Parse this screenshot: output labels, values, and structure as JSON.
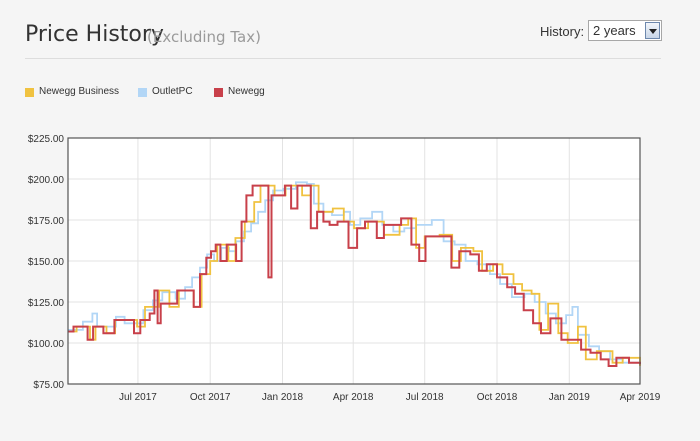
{
  "header": {
    "title": "Price History",
    "subtitle": "(Excluding Tax)",
    "history_label": "History:",
    "history_value": "2 years"
  },
  "legend": [
    {
      "name": "Newegg Business",
      "color": "#f0c240"
    },
    {
      "name": "OutletPC",
      "color": "#b2d6f6"
    },
    {
      "name": "Newegg",
      "color": "#c8404a"
    }
  ],
  "chart_data": {
    "type": "line",
    "title": "",
    "xlabel": "",
    "ylabel": "",
    "ylim": [
      75,
      225
    ],
    "yticks": [
      "$225.00",
      "$200.00",
      "$175.00",
      "$150.00",
      "$125.00",
      "$100.00",
      "$75.00"
    ],
    "xticks": [
      "Jul 2017",
      "Oct 2017",
      "Jan 2018",
      "Apr 2018",
      "Jul 2018",
      "Oct 2018",
      "Jan 2019",
      "Apr 2019"
    ],
    "xlim": [
      "2017-04-03",
      "2019-04-01"
    ],
    "grid": true,
    "legend_position": "top-left",
    "step": true,
    "series": [
      {
        "name": "OutletPC",
        "color": "#b2d6f6",
        "points": [
          [
            "2017-04-03",
            108
          ],
          [
            "2017-04-22",
            113
          ],
          [
            "2017-05-04",
            118
          ],
          [
            "2017-05-10",
            110
          ],
          [
            "2017-05-25",
            110
          ],
          [
            "2017-06-03",
            116
          ],
          [
            "2017-06-14",
            112
          ],
          [
            "2017-06-28",
            112
          ],
          [
            "2017-07-08",
            120
          ],
          [
            "2017-07-20",
            126
          ],
          [
            "2017-08-01",
            131
          ],
          [
            "2017-08-18",
            127
          ],
          [
            "2017-08-30",
            134
          ],
          [
            "2017-09-08",
            140
          ],
          [
            "2017-09-18",
            146
          ],
          [
            "2017-09-27",
            154
          ],
          [
            "2017-10-06",
            150
          ],
          [
            "2017-10-15",
            158
          ],
          [
            "2017-10-25",
            156
          ],
          [
            "2017-11-03",
            162
          ],
          [
            "2017-11-13",
            168
          ],
          [
            "2017-11-22",
            173
          ],
          [
            "2017-12-01",
            180
          ],
          [
            "2017-12-10",
            187
          ],
          [
            "2017-12-20",
            193
          ],
          [
            "2018-01-02",
            194
          ],
          [
            "2018-01-18",
            198
          ],
          [
            "2018-02-01",
            197
          ],
          [
            "2018-02-10",
            185
          ],
          [
            "2018-02-22",
            180
          ],
          [
            "2018-03-05",
            178
          ],
          [
            "2018-03-20",
            180
          ],
          [
            "2018-03-28",
            172
          ],
          [
            "2018-04-10",
            176
          ],
          [
            "2018-04-25",
            180
          ],
          [
            "2018-05-08",
            172
          ],
          [
            "2018-05-22",
            168
          ],
          [
            "2018-06-05",
            170
          ],
          [
            "2018-06-20",
            172
          ],
          [
            "2018-07-10",
            175
          ],
          [
            "2018-07-25",
            162
          ],
          [
            "2018-08-08",
            160
          ],
          [
            "2018-08-22",
            150
          ],
          [
            "2018-09-06",
            148
          ],
          [
            "2018-09-22",
            142
          ],
          [
            "2018-10-05",
            136
          ],
          [
            "2018-10-20",
            128
          ],
          [
            "2018-11-05",
            130
          ],
          [
            "2018-11-18",
            125
          ],
          [
            "2018-12-02",
            118
          ],
          [
            "2018-12-15",
            112
          ],
          [
            "2018-12-28",
            117
          ],
          [
            "2019-01-05",
            122
          ],
          [
            "2019-01-12",
            105
          ],
          [
            "2019-01-26",
            98
          ],
          [
            "2019-02-08",
            95
          ],
          [
            "2019-02-22",
            90
          ],
          [
            "2019-03-10",
            88
          ],
          [
            "2019-04-01",
            87
          ]
        ]
      },
      {
        "name": "Newegg Business",
        "color": "#f0c240",
        "points": [
          [
            "2017-04-03",
            107
          ],
          [
            "2017-04-14",
            110
          ],
          [
            "2017-05-01",
            102
          ],
          [
            "2017-05-08",
            110
          ],
          [
            "2017-05-22",
            106
          ],
          [
            "2017-06-02",
            114
          ],
          [
            "2017-06-30",
            110
          ],
          [
            "2017-07-10",
            122
          ],
          [
            "2017-07-28",
            132
          ],
          [
            "2017-08-10",
            122
          ],
          [
            "2017-08-22",
            132
          ],
          [
            "2017-09-10",
            122
          ],
          [
            "2017-09-20",
            142
          ],
          [
            "2017-10-01",
            150
          ],
          [
            "2017-10-10",
            160
          ],
          [
            "2017-10-24",
            150
          ],
          [
            "2017-11-02",
            164
          ],
          [
            "2017-11-14",
            174
          ],
          [
            "2017-11-26",
            186
          ],
          [
            "2017-12-04",
            196
          ],
          [
            "2017-12-22",
            190
          ],
          [
            "2018-01-05",
            196
          ],
          [
            "2018-01-26",
            190
          ],
          [
            "2018-02-06",
            196
          ],
          [
            "2018-02-16",
            180
          ],
          [
            "2018-03-06",
            182
          ],
          [
            "2018-03-20",
            174
          ],
          [
            "2018-04-02",
            170
          ],
          [
            "2018-04-20",
            174
          ],
          [
            "2018-05-10",
            166
          ],
          [
            "2018-05-30",
            172
          ],
          [
            "2018-06-10",
            176
          ],
          [
            "2018-06-20",
            158
          ],
          [
            "2018-07-01",
            165
          ],
          [
            "2018-07-20",
            166
          ],
          [
            "2018-08-05",
            150
          ],
          [
            "2018-08-16",
            158
          ],
          [
            "2018-09-01",
            156
          ],
          [
            "2018-09-12",
            144
          ],
          [
            "2018-09-26",
            148
          ],
          [
            "2018-10-08",
            142
          ],
          [
            "2018-10-22",
            136
          ],
          [
            "2018-11-02",
            132
          ],
          [
            "2018-11-14",
            130
          ],
          [
            "2018-11-24",
            108
          ],
          [
            "2018-12-05",
            124
          ],
          [
            "2018-12-18",
            106
          ],
          [
            "2018-12-30",
            100
          ],
          [
            "2019-01-12",
            110
          ],
          [
            "2019-01-22",
            90
          ],
          [
            "2019-02-05",
            95
          ],
          [
            "2019-02-25",
            88
          ],
          [
            "2019-03-10",
            91
          ],
          [
            "2019-04-01",
            86
          ]
        ]
      },
      {
        "name": "Newegg",
        "color": "#c8404a",
        "points": [
          [
            "2017-04-03",
            107
          ],
          [
            "2017-04-10",
            110
          ],
          [
            "2017-04-28",
            102
          ],
          [
            "2017-05-05",
            110
          ],
          [
            "2017-05-18",
            106
          ],
          [
            "2017-06-01",
            114
          ],
          [
            "2017-06-26",
            106
          ],
          [
            "2017-07-04",
            114
          ],
          [
            "2017-07-16",
            118
          ],
          [
            "2017-07-22",
            132
          ],
          [
            "2017-07-26",
            112
          ],
          [
            "2017-07-30",
            124
          ],
          [
            "2017-08-14",
            124
          ],
          [
            "2017-08-20",
            132
          ],
          [
            "2017-09-04",
            132
          ],
          [
            "2017-09-10",
            122
          ],
          [
            "2017-09-18",
            142
          ],
          [
            "2017-09-26",
            152
          ],
          [
            "2017-10-02",
            156
          ],
          [
            "2017-10-08",
            160
          ],
          [
            "2017-10-14",
            150
          ],
          [
            "2017-10-22",
            160
          ],
          [
            "2017-11-03",
            150
          ],
          [
            "2017-11-10",
            174
          ],
          [
            "2017-11-16",
            190
          ],
          [
            "2017-11-24",
            196
          ],
          [
            "2017-12-14",
            140
          ],
          [
            "2017-12-18",
            190
          ],
          [
            "2018-01-04",
            196
          ],
          [
            "2018-01-12",
            182
          ],
          [
            "2018-01-20",
            196
          ],
          [
            "2018-02-06",
            170
          ],
          [
            "2018-02-14",
            180
          ],
          [
            "2018-02-22",
            174
          ],
          [
            "2018-03-02",
            172
          ],
          [
            "2018-03-12",
            174
          ],
          [
            "2018-03-26",
            158
          ],
          [
            "2018-04-06",
            170
          ],
          [
            "2018-04-16",
            174
          ],
          [
            "2018-05-01",
            164
          ],
          [
            "2018-05-10",
            172
          ],
          [
            "2018-06-01",
            176
          ],
          [
            "2018-06-14",
            160
          ],
          [
            "2018-06-24",
            150
          ],
          [
            "2018-07-02",
            165
          ],
          [
            "2018-07-24",
            165
          ],
          [
            "2018-08-04",
            146
          ],
          [
            "2018-08-14",
            156
          ],
          [
            "2018-08-28",
            154
          ],
          [
            "2018-09-08",
            144
          ],
          [
            "2018-09-18",
            148
          ],
          [
            "2018-10-01",
            140
          ],
          [
            "2018-10-14",
            134
          ],
          [
            "2018-10-24",
            130
          ],
          [
            "2018-11-04",
            120
          ],
          [
            "2018-11-16",
            112
          ],
          [
            "2018-11-26",
            106
          ],
          [
            "2018-12-08",
            115
          ],
          [
            "2018-12-22",
            102
          ],
          [
            "2019-01-04",
            102
          ],
          [
            "2019-01-16",
            96
          ],
          [
            "2019-01-28",
            94
          ],
          [
            "2019-02-10",
            90
          ],
          [
            "2019-02-20",
            86
          ],
          [
            "2019-03-02",
            91
          ],
          [
            "2019-03-18",
            88
          ],
          [
            "2019-04-01",
            87
          ]
        ]
      }
    ]
  }
}
